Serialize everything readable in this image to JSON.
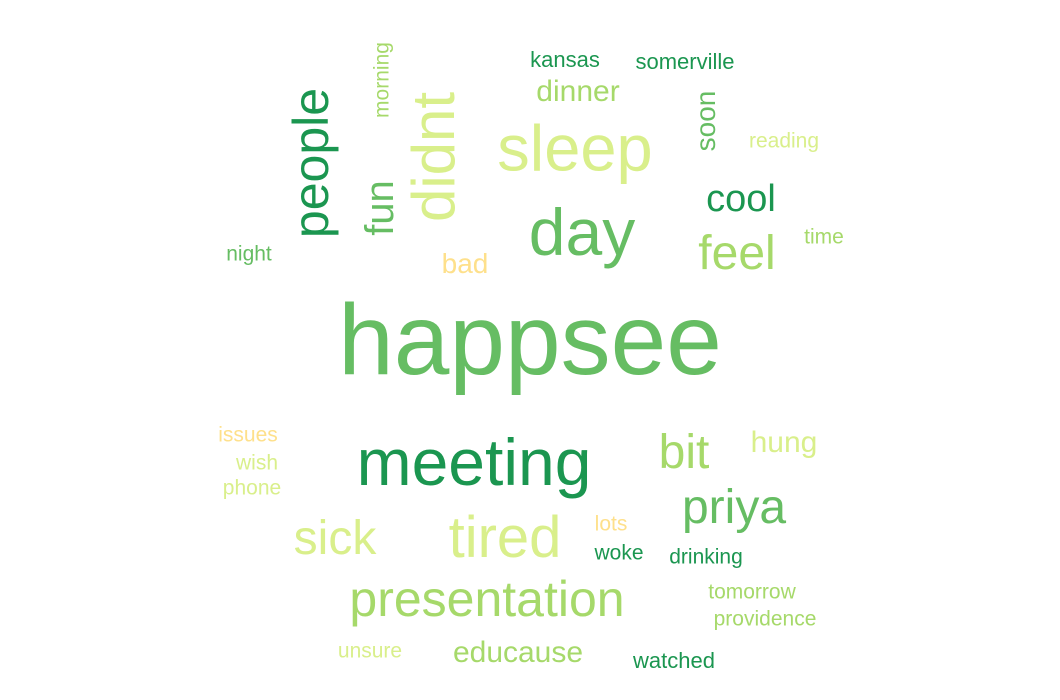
{
  "colors": {
    "dark_green": "#1b9650",
    "mid_green": "#66bd63",
    "light_green": "#a6d96a",
    "yellow_green": "#d9ef8b",
    "light_orange": "#fee08b"
  },
  "words": [
    {
      "text": "happsee",
      "weight": 100,
      "color": "#66bd63"
    },
    {
      "text": "meeting",
      "weight": 62,
      "color": "#1b9650"
    },
    {
      "text": "sleep",
      "weight": 52,
      "color": "#d9ef8b"
    },
    {
      "text": "day",
      "weight": 52,
      "color": "#66bd63"
    },
    {
      "text": "didnt",
      "weight": 45,
      "color": "#d9ef8b"
    },
    {
      "text": "people",
      "weight": 45,
      "color": "#1b9650"
    },
    {
      "text": "tired",
      "weight": 45,
      "color": "#d9ef8b"
    },
    {
      "text": "presentation",
      "weight": 40,
      "color": "#a6d96a"
    },
    {
      "text": "priya",
      "weight": 40,
      "color": "#66bd63"
    },
    {
      "text": "sick",
      "weight": 40,
      "color": "#d9ef8b"
    },
    {
      "text": "bit",
      "weight": 38,
      "color": "#a6d96a"
    },
    {
      "text": "feel",
      "weight": 38,
      "color": "#a6d96a"
    },
    {
      "text": "fun",
      "weight": 35,
      "color": "#66bd63"
    },
    {
      "text": "cool",
      "weight": 32,
      "color": "#1b9650"
    },
    {
      "text": "hung",
      "weight": 28,
      "color": "#d9ef8b"
    },
    {
      "text": "educause",
      "weight": 28,
      "color": "#a6d96a"
    },
    {
      "text": "dinner",
      "weight": 28,
      "color": "#a6d96a"
    },
    {
      "text": "bad",
      "weight": 25,
      "color": "#fee08b"
    },
    {
      "text": "soon",
      "weight": 25,
      "color": "#66bd63"
    },
    {
      "text": "kansas",
      "weight": 22,
      "color": "#1b9650"
    },
    {
      "text": "somerville",
      "weight": 22,
      "color": "#1b9650"
    },
    {
      "text": "watched",
      "weight": 22,
      "color": "#1b9650"
    },
    {
      "text": "woke",
      "weight": 22,
      "color": "#1b9650"
    },
    {
      "text": "drinking",
      "weight": 22,
      "color": "#1b9650"
    },
    {
      "text": "tomorrow",
      "weight": 21,
      "color": "#a6d96a"
    },
    {
      "text": "providence",
      "weight": 21,
      "color": "#a6d96a"
    },
    {
      "text": "morning",
      "weight": 21,
      "color": "#a6d96a"
    },
    {
      "text": "reading",
      "weight": 21,
      "color": "#d9ef8b"
    },
    {
      "text": "night",
      "weight": 21,
      "color": "#66bd63"
    },
    {
      "text": "time",
      "weight": 21,
      "color": "#a6d96a"
    },
    {
      "text": "issues",
      "weight": 21,
      "color": "#fee08b"
    },
    {
      "text": "wish",
      "weight": 21,
      "color": "#d9ef8b"
    },
    {
      "text": "phone",
      "weight": 21,
      "color": "#d9ef8b"
    },
    {
      "text": "lots",
      "weight": 21,
      "color": "#fee08b"
    },
    {
      "text": "unsure",
      "weight": 21,
      "color": "#d9ef8b"
    }
  ]
}
